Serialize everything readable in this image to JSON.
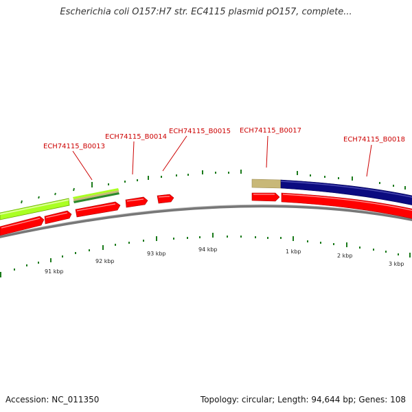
{
  "header": {
    "title": "Escherichia coli O157:H7 str. EC4115 plasmid pO157, complete..."
  },
  "footer": {
    "accession": "Accession: NC_011350",
    "summary": "Topology: circular; Length: 94,644 bp; Genes: 108"
  },
  "colors": {
    "gene_red": "#ff0000",
    "track_green": "#aaff22",
    "track_tan": "#c8b878",
    "track_navy": "#0b0b80",
    "backbone": "#888888",
    "tick_green": "#1a7a1a",
    "label_red": "#cc0000"
  },
  "gene_labels": [
    {
      "name": "ECH74115_B0013"
    },
    {
      "name": "ECH74115_B0014"
    },
    {
      "name": "ECH74115_B0015"
    },
    {
      "name": "ECH74115_B0017"
    },
    {
      "name": "ECH74115_B0018"
    }
  ],
  "scale_labels": [
    "91 kbp",
    "92 kbp",
    "93 kbp",
    "94 kbp",
    "1 kbp",
    "2 kbp",
    "3 kbp"
  ]
}
